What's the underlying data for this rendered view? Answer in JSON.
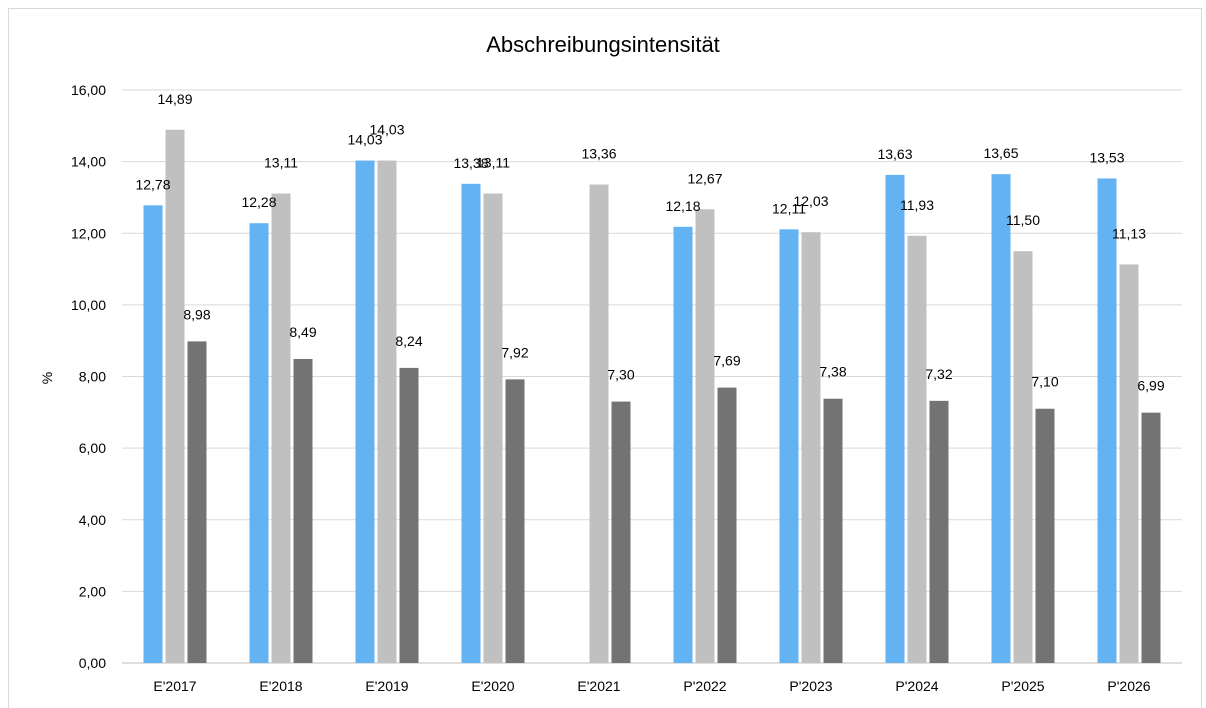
{
  "chart_data": {
    "type": "bar",
    "title": "Abschreibungsintensität",
    "xlabel": "",
    "ylabel": "%",
    "ylim": [
      0,
      16
    ],
    "yticks": [
      0,
      2,
      4,
      6,
      8,
      10,
      12,
      14,
      16
    ],
    "ytick_labels": [
      "0,00",
      "2,00",
      "4,00",
      "6,00",
      "8,00",
      "10,00",
      "12,00",
      "14,00",
      "16,00"
    ],
    "grid": true,
    "legend": "none",
    "categories": [
      "E'2017",
      "E'2018",
      "E'2019",
      "E'2020",
      "E'2021",
      "P'2022",
      "P'2023",
      "P'2024",
      "P'2025",
      "P'2026"
    ],
    "series": [
      {
        "color": "#63b2f2",
        "values": [
          12.78,
          12.28,
          14.03,
          13.38,
          null,
          12.18,
          12.11,
          13.63,
          13.65,
          13.53
        ],
        "labels": [
          "12,78",
          "12,28",
          "14,03",
          "13,38",
          "",
          "12,18",
          "12,11",
          "13,63",
          "13,65",
          "13,53"
        ]
      },
      {
        "color": "#c0c0c0",
        "values": [
          14.89,
          13.11,
          14.03,
          13.11,
          13.36,
          12.67,
          12.03,
          11.93,
          11.5,
          11.13
        ],
        "labels": [
          "14,89",
          "13,11",
          "14,03",
          "13,11",
          "13,36",
          "12,67",
          "12,03",
          "11,93",
          "11,50",
          "11,13"
        ]
      },
      {
        "color": "#737373",
        "values": [
          8.98,
          8.49,
          8.24,
          7.92,
          7.3,
          7.69,
          7.38,
          7.32,
          7.1,
          6.99
        ],
        "labels": [
          "8,98",
          "8,49",
          "8,24",
          "7,92",
          "7,30",
          "7,69",
          "7,38",
          "7,32",
          "7,10",
          "6,99"
        ]
      }
    ]
  }
}
